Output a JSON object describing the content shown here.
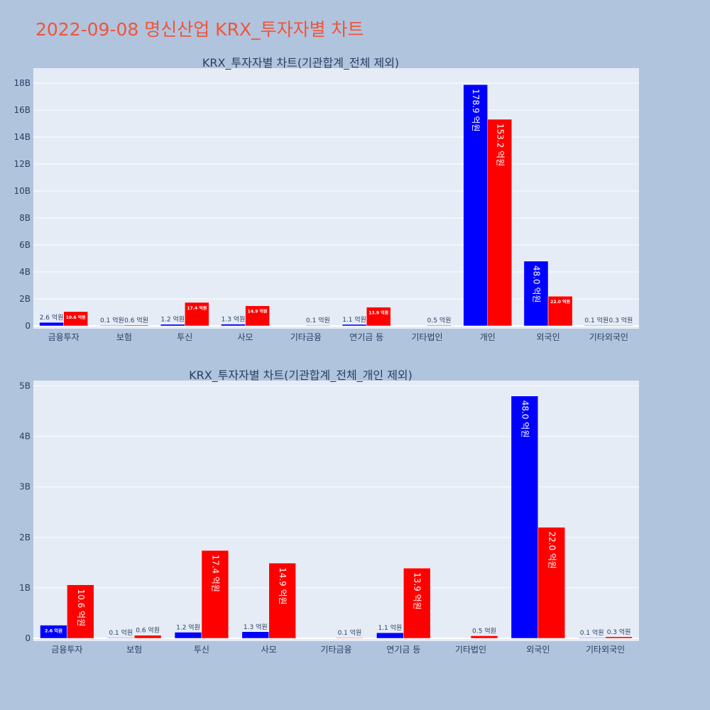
{
  "page": {
    "title": "2022-09-08 명신산업 KRX_투자자별 차트"
  },
  "chart_data": [
    {
      "type": "bar",
      "title": "KRX_투자자별 차트(기관합계_전체 제외)",
      "xlabel": "",
      "ylabel": "",
      "categories": [
        "금융투자",
        "보험",
        "투신",
        "사모",
        "기타금융",
        "연기금 등",
        "기타법인",
        "개인",
        "외국인",
        "기타외국인"
      ],
      "series": [
        {
          "color": "#0000ff",
          "values": [
            2.6,
            0.1,
            1.2,
            1.3,
            null,
            1.1,
            null,
            178.9,
            48.0,
            0.1
          ]
        },
        {
          "color": "#ff0000",
          "values": [
            10.6,
            0.6,
            17.4,
            14.9,
            0.1,
            13.9,
            0.5,
            153.2,
            22.0,
            0.3
          ]
        }
      ],
      "value_unit": "억원",
      "yticks": [
        "0",
        "2B",
        "4B",
        "6B",
        "8B",
        "10B",
        "12B",
        "14B",
        "16B",
        "18B"
      ],
      "ylim": [
        0,
        189
      ],
      "grid": true,
      "legend": "none"
    },
    {
      "type": "bar",
      "title": "KRX_투자자별 차트(기관합계_전체_개인 제외)",
      "xlabel": "",
      "ylabel": "",
      "categories": [
        "금융투자",
        "보험",
        "투신",
        "사모",
        "기타금융",
        "연기금 등",
        "기타법인",
        "외국인",
        "기타외국인"
      ],
      "series": [
        {
          "color": "#0000ff",
          "values": [
            2.6,
            0.1,
            1.2,
            1.3,
            null,
            1.1,
            null,
            48.0,
            0.1
          ]
        },
        {
          "color": "#ff0000",
          "values": [
            10.6,
            0.6,
            17.4,
            14.9,
            0.1,
            13.9,
            0.5,
            22.0,
            0.3
          ]
        }
      ],
      "value_unit": "억원",
      "yticks": [
        "0",
        "1B",
        "2B",
        "3B",
        "4B",
        "5B"
      ],
      "ylim": [
        0,
        50.5
      ],
      "grid": true,
      "legend": "none"
    }
  ],
  "colors": {
    "background": "#b0c4de",
    "plot_bg": "#e5ecf6",
    "title": "#ef553b",
    "text": "#2a3f5f"
  }
}
